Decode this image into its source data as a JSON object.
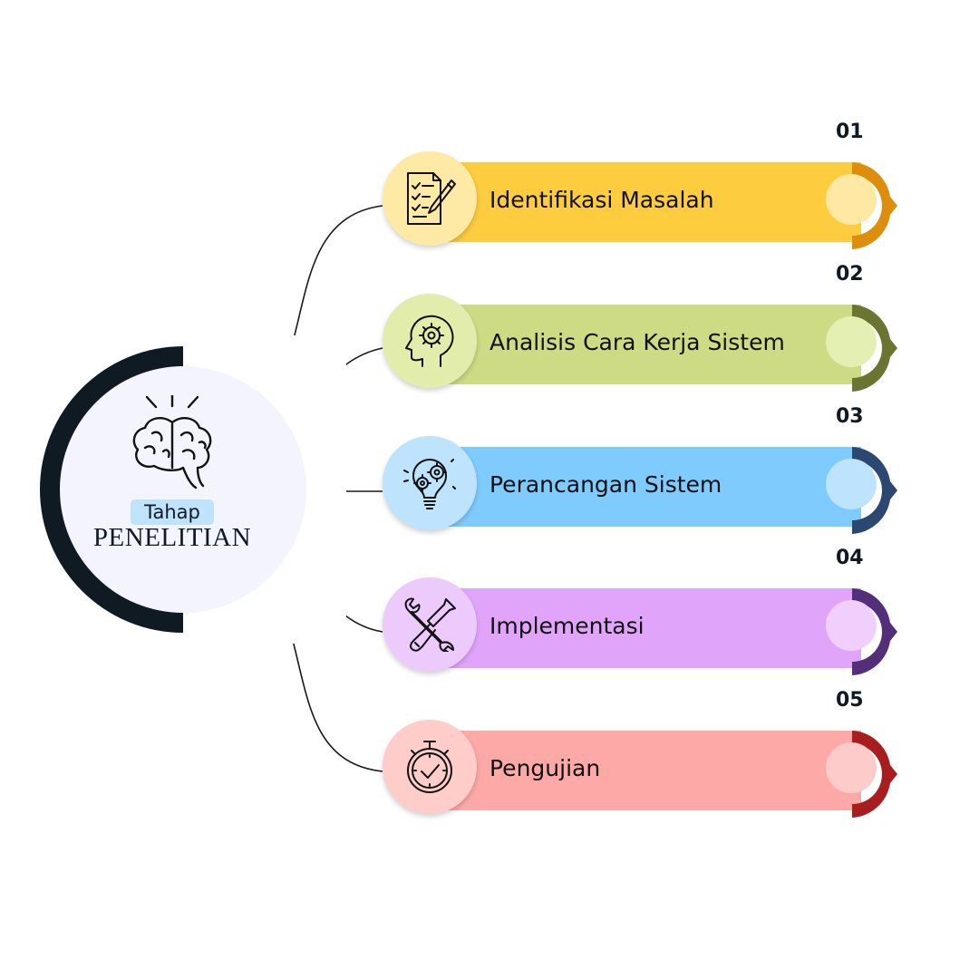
{
  "center": {
    "tag": "Tahap",
    "title": "PENELITIAN",
    "icon": "brain-icon"
  },
  "steps": [
    {
      "number": "01",
      "label": "Identifikasi Masalah",
      "icon": "checklist-pencil-icon",
      "bar_color": "#fdcd3f",
      "cap_color": "#dd8e0c",
      "circle_color": "#fee9a5",
      "knob_color": "#ffe7a4"
    },
    {
      "number": "02",
      "label": "Analisis Cara Kerja Sistem",
      "icon": "head-gear-icon",
      "bar_color": "#cddc84",
      "cap_color": "#6b7431",
      "circle_color": "#e3edab",
      "knob_color": "#e4efb3"
    },
    {
      "number": "03",
      "label": "Perancangan Sistem",
      "icon": "lightbulb-gears-icon",
      "bar_color": "#7fcbfd",
      "cap_color": "#2d4870",
      "circle_color": "#bde3fd",
      "knob_color": "#bee4fd"
    },
    {
      "number": "04",
      "label": "Implementasi",
      "icon": "wrench-screwdriver-icon",
      "bar_color": "#e0a5fb",
      "cap_color": "#532f79",
      "circle_color": "#eccbfc",
      "knob_color": "#f0cffd"
    },
    {
      "number": "05",
      "label": "Pengujian",
      "icon": "stopwatch-check-icon",
      "bar_color": "#fda9a8",
      "cap_color": "#a81e1e",
      "circle_color": "#fecdca",
      "knob_color": "#fdcbca"
    }
  ]
}
